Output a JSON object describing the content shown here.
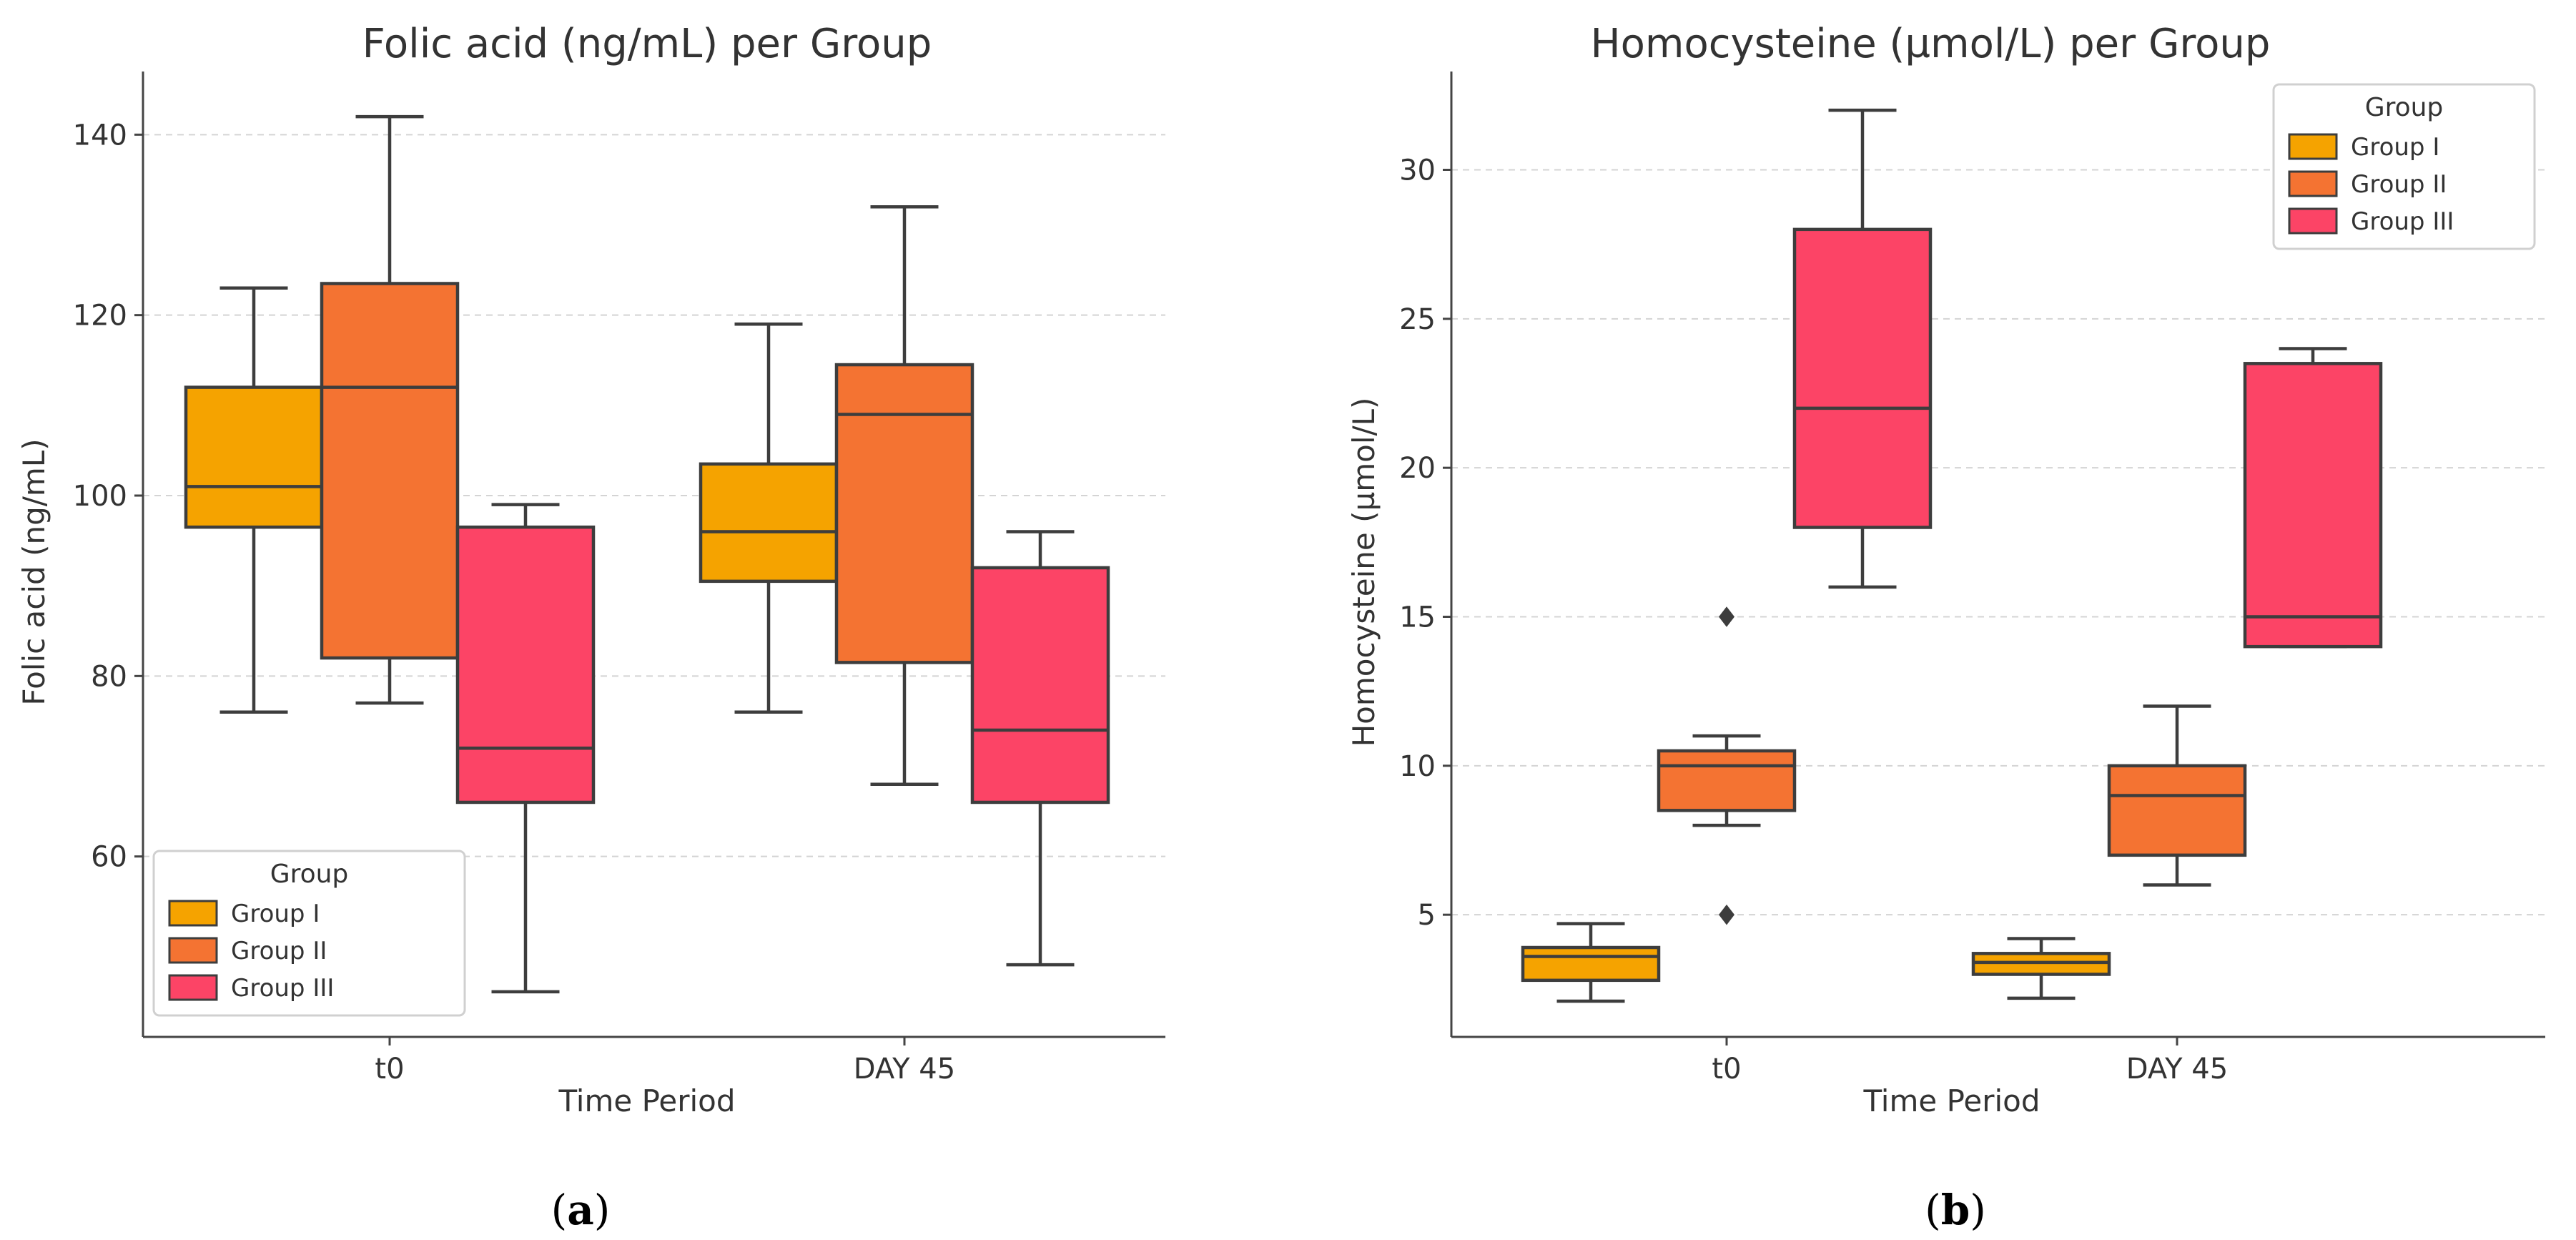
{
  "chart_data": [
    {
      "type": "box",
      "title": "Folic acid (ng/mL) per Group",
      "xlabel": "Time Period",
      "ylabel": "Folic acid (ng/mL)",
      "caption_letter": "a",
      "categories": [
        "t0",
        "DAY 45"
      ],
      "ylim": [
        40,
        147
      ],
      "yticks": [
        60,
        80,
        100,
        120,
        140
      ],
      "grid": true,
      "legend": {
        "title": "Group",
        "position": "bottom-left",
        "entries": [
          "Group I",
          "Group II",
          "Group III"
        ]
      },
      "series": [
        {
          "name": "Group I",
          "color": "#F5A300",
          "boxes": [
            {
              "min": 76,
              "q1": 96.5,
              "median": 101,
              "q3": 112,
              "max": 123,
              "outliers": []
            },
            {
              "min": 76,
              "q1": 90.5,
              "median": 96,
              "q3": 103.5,
              "max": 119,
              "outliers": []
            }
          ]
        },
        {
          "name": "Group II",
          "color": "#F47332",
          "boxes": [
            {
              "min": 77,
              "q1": 82,
              "median": 112,
              "q3": 123.5,
              "max": 142,
              "outliers": []
            },
            {
              "min": 68,
              "q1": 81.5,
              "median": 109,
              "q3": 114.5,
              "max": 132,
              "outliers": []
            }
          ]
        },
        {
          "name": "Group III",
          "color": "#FC4466",
          "boxes": [
            {
              "min": 45,
              "q1": 66,
              "median": 72,
              "q3": 96.5,
              "max": 99,
              "outliers": []
            },
            {
              "min": 48,
              "q1": 66,
              "median": 74,
              "q3": 92,
              "max": 96,
              "outliers": []
            }
          ]
        }
      ]
    },
    {
      "type": "box",
      "title": "Homocysteine (µmol/L) per Group",
      "xlabel": "Time Period",
      "ylabel": "Homocysteine (µmol/L)",
      "caption_letter": "b",
      "categories": [
        "t0",
        "DAY 45"
      ],
      "ylim": [
        0.9,
        33.3
      ],
      "yticks": [
        5,
        10,
        15,
        20,
        25,
        30
      ],
      "grid": true,
      "legend": {
        "title": "Group",
        "position": "top-right",
        "entries": [
          "Group I",
          "Group II",
          "Group III"
        ]
      },
      "series": [
        {
          "name": "Group I",
          "color": "#F5A300",
          "boxes": [
            {
              "min": 2.1,
              "q1": 2.8,
              "median": 3.6,
              "q3": 3.9,
              "max": 4.7,
              "outliers": []
            },
            {
              "min": 2.2,
              "q1": 3.0,
              "median": 3.4,
              "q3": 3.7,
              "max": 4.2,
              "outliers": []
            }
          ]
        },
        {
          "name": "Group II",
          "color": "#F47332",
          "boxes": [
            {
              "min": 8.0,
              "q1": 8.5,
              "median": 10.0,
              "q3": 10.5,
              "max": 11.0,
              "outliers": [
                15,
                5
              ]
            },
            {
              "min": 6.0,
              "q1": 7.0,
              "median": 9.0,
              "q3": 10.0,
              "max": 12.0,
              "outliers": []
            }
          ]
        },
        {
          "name": "Group III",
          "color": "#FC4466",
          "boxes": [
            {
              "min": 16,
              "q1": 18,
              "median": 22,
              "q3": 28,
              "max": 32,
              "outliers": []
            },
            {
              "min": 14,
              "q1": 14,
              "median": 15,
              "q3": 23.5,
              "max": 24,
              "outliers": []
            }
          ]
        }
      ]
    }
  ]
}
